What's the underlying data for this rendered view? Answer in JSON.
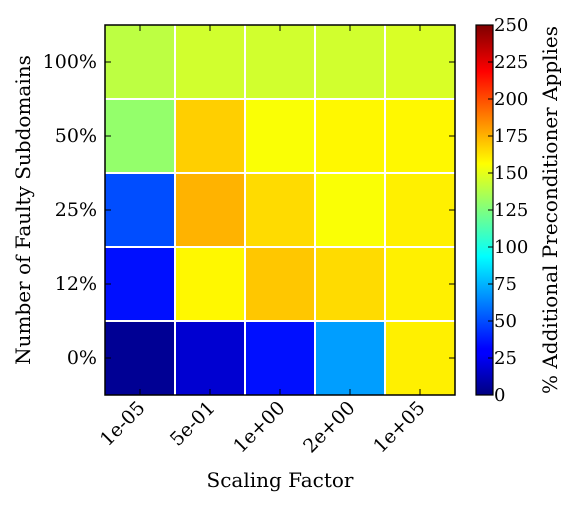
{
  "chart_data": {
    "type": "heatmap",
    "xlabel": "Scaling Factor",
    "ylabel": "Number of Faulty Subdomains",
    "colorbar_label": "% Additional Preconditioner Applies",
    "x_categories": [
      "1e-05",
      "5e-01",
      "1e+00",
      "2e+00",
      "1e+05"
    ],
    "y_categories": [
      "100%",
      "50%",
      "25%",
      "12%",
      "0%"
    ],
    "values": [
      [
        140,
        145,
        145,
        145,
        147
      ],
      [
        130,
        168,
        155,
        158,
        158
      ],
      [
        50,
        175,
        165,
        155,
        160
      ],
      [
        35,
        158,
        170,
        165,
        160
      ],
      [
        5,
        20,
        35,
        70,
        160
      ]
    ],
    "color_range": [
      0,
      250
    ],
    "colorbar_ticks": [
      "0",
      "25",
      "50",
      "75",
      "100",
      "125",
      "150",
      "175",
      "200",
      "225",
      "250"
    ],
    "colormap": "jet",
    "grid_color": "#ffffff"
  }
}
